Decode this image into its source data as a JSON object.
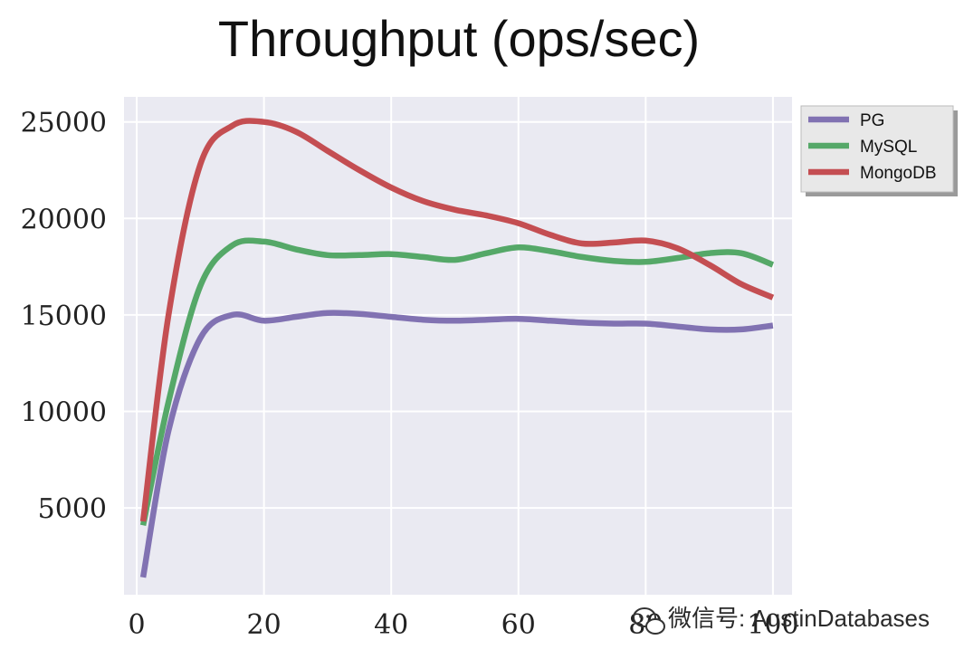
{
  "chart_data": {
    "type": "line",
    "title": "Throughput (ops/sec)",
    "xlabel": "",
    "ylabel": "",
    "xlim": [
      -2,
      103
    ],
    "ylim": [
      500,
      26300
    ],
    "xticks": [
      0,
      20,
      40,
      60,
      80,
      100
    ],
    "yticks": [
      5000,
      10000,
      15000,
      20000,
      25000
    ],
    "grid": true,
    "legend_position": "outside-top-right",
    "series": [
      {
        "name": "PG",
        "color": "#8172b2",
        "x": [
          1,
          5,
          10,
          15,
          20,
          25,
          30,
          35,
          40,
          45,
          50,
          55,
          60,
          65,
          70,
          75,
          80,
          85,
          90,
          95,
          100
        ],
        "y": [
          1400,
          9000,
          13800,
          15000,
          14700,
          14900,
          15100,
          15050,
          14900,
          14750,
          14700,
          14750,
          14800,
          14700,
          14600,
          14550,
          14550,
          14400,
          14250,
          14250,
          14450
        ]
      },
      {
        "name": "MySQL",
        "color": "#55a868",
        "x": [
          1,
          5,
          10,
          15,
          20,
          25,
          30,
          35,
          40,
          45,
          50,
          55,
          60,
          65,
          70,
          75,
          80,
          85,
          90,
          95,
          100
        ],
        "y": [
          4100,
          10500,
          16500,
          18600,
          18800,
          18400,
          18100,
          18100,
          18150,
          18000,
          17850,
          18200,
          18500,
          18300,
          18000,
          17800,
          17750,
          17950,
          18200,
          18200,
          17600
        ]
      },
      {
        "name": "MongoDB",
        "color": "#c44e52",
        "x": [
          1,
          5,
          10,
          15,
          20,
          25,
          30,
          35,
          40,
          45,
          50,
          55,
          60,
          65,
          70,
          75,
          80,
          85,
          90,
          95,
          100
        ],
        "y": [
          4300,
          15000,
          22800,
          24800,
          25000,
          24500,
          23500,
          22500,
          21600,
          20900,
          20450,
          20150,
          19750,
          19150,
          18700,
          18750,
          18850,
          18450,
          17600,
          16600,
          15900
        ]
      }
    ]
  },
  "watermark": {
    "icon": "wechat-icon",
    "text": "微信号: AustinDatabases"
  }
}
